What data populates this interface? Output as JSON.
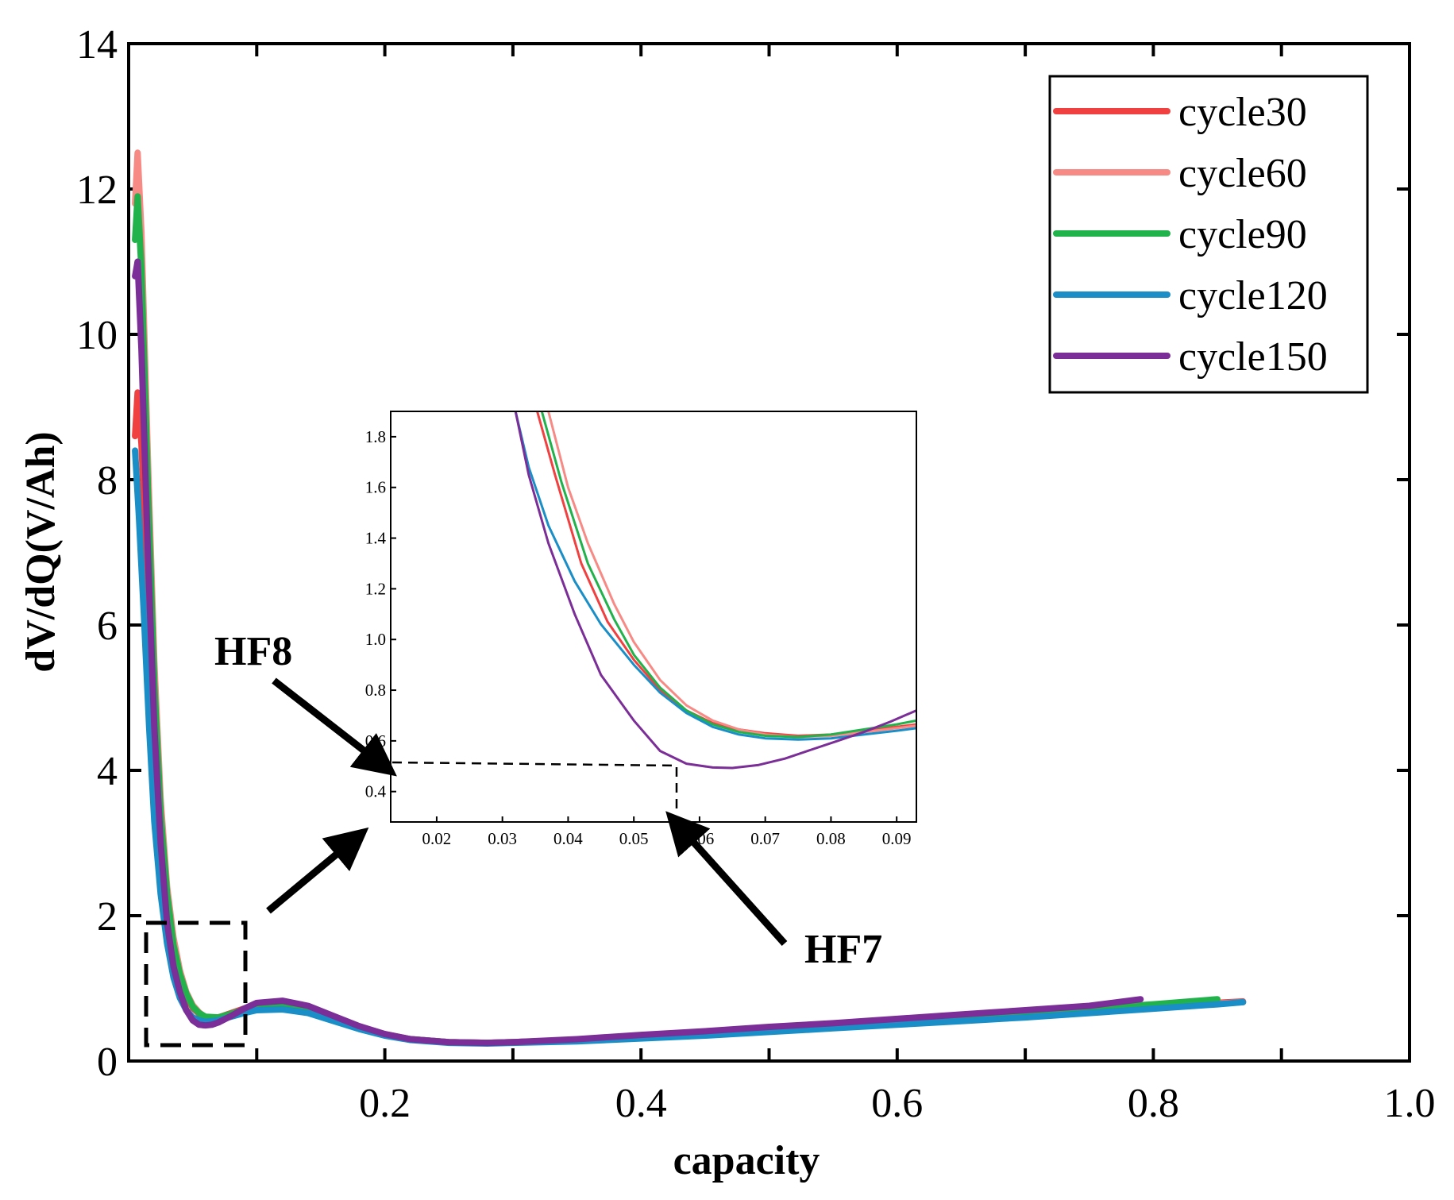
{
  "chart_data": [
    {
      "type": "line",
      "xlabel": "capacity",
      "ylabel": "dV/dQ(V/Ah)",
      "xlim": [
        0,
        1.0
      ],
      "ylim": [
        0,
        14
      ],
      "x_ticks": [
        "0.2",
        "0.4",
        "0.6",
        "0.8",
        "1.0"
      ],
      "y_ticks": [
        "0",
        "2",
        "4",
        "6",
        "8",
        "10",
        "12",
        "14"
      ],
      "legend_position": "top-right",
      "grid": false,
      "series": [
        {
          "name": "cycle30",
          "color": "#f04040",
          "x": [
            0.005,
            0.007,
            0.01,
            0.015,
            0.02,
            0.025,
            0.03,
            0.035,
            0.04,
            0.045,
            0.05,
            0.055,
            0.06,
            0.07,
            0.08,
            0.09,
            0.1,
            0.12,
            0.14,
            0.16,
            0.18,
            0.2,
            0.22,
            0.25,
            0.28,
            0.3,
            0.35,
            0.4,
            0.45,
            0.5,
            0.55,
            0.6,
            0.65,
            0.7,
            0.75,
            0.8,
            0.85,
            0.87
          ],
          "y": [
            8.6,
            9.2,
            8.5,
            6.5,
            4.6,
            3.2,
            2.2,
            1.55,
            1.15,
            0.9,
            0.73,
            0.65,
            0.6,
            0.6,
            0.66,
            0.72,
            0.76,
            0.78,
            0.72,
            0.6,
            0.47,
            0.37,
            0.3,
            0.26,
            0.25,
            0.26,
            0.29,
            0.34,
            0.38,
            0.43,
            0.48,
            0.53,
            0.58,
            0.63,
            0.69,
            0.75,
            0.8,
            0.82
          ]
        },
        {
          "name": "cycle60",
          "color": "#f88a85",
          "x": [
            0.005,
            0.007,
            0.01,
            0.015,
            0.02,
            0.025,
            0.03,
            0.035,
            0.04,
            0.045,
            0.05,
            0.055,
            0.06,
            0.07,
            0.08,
            0.09,
            0.1,
            0.12,
            0.14,
            0.16,
            0.18,
            0.2,
            0.22,
            0.25,
            0.28,
            0.3,
            0.35,
            0.4,
            0.45,
            0.5,
            0.55,
            0.6,
            0.65,
            0.7,
            0.75,
            0.8,
            0.85,
            0.87
          ],
          "y": [
            11.8,
            12.5,
            11.4,
            8.3,
            5.5,
            3.6,
            2.4,
            1.7,
            1.25,
            0.95,
            0.77,
            0.67,
            0.6,
            0.59,
            0.64,
            0.7,
            0.75,
            0.77,
            0.71,
            0.59,
            0.46,
            0.36,
            0.3,
            0.26,
            0.25,
            0.26,
            0.29,
            0.33,
            0.38,
            0.43,
            0.48,
            0.53,
            0.58,
            0.63,
            0.69,
            0.74,
            0.79,
            0.81
          ]
        },
        {
          "name": "cycle90",
          "color": "#22b24c",
          "x": [
            0.005,
            0.007,
            0.01,
            0.015,
            0.02,
            0.025,
            0.03,
            0.035,
            0.04,
            0.045,
            0.05,
            0.055,
            0.06,
            0.07,
            0.08,
            0.09,
            0.1,
            0.12,
            0.14,
            0.16,
            0.18,
            0.2,
            0.22,
            0.25,
            0.28,
            0.3,
            0.35,
            0.4,
            0.45,
            0.5,
            0.55,
            0.6,
            0.65,
            0.7,
            0.75,
            0.8,
            0.85
          ],
          "y": [
            11.3,
            11.9,
            10.9,
            7.9,
            5.2,
            3.4,
            2.3,
            1.6,
            1.2,
            0.93,
            0.75,
            0.66,
            0.61,
            0.6,
            0.65,
            0.71,
            0.75,
            0.77,
            0.71,
            0.59,
            0.46,
            0.36,
            0.3,
            0.26,
            0.25,
            0.26,
            0.29,
            0.34,
            0.39,
            0.44,
            0.5,
            0.55,
            0.6,
            0.66,
            0.72,
            0.78,
            0.85
          ]
        },
        {
          "name": "cycle120",
          "color": "#1a8ec6",
          "x": [
            0.005,
            0.008,
            0.012,
            0.016,
            0.02,
            0.025,
            0.03,
            0.035,
            0.04,
            0.045,
            0.05,
            0.055,
            0.06,
            0.07,
            0.08,
            0.09,
            0.1,
            0.12,
            0.14,
            0.16,
            0.18,
            0.2,
            0.22,
            0.25,
            0.28,
            0.3,
            0.35,
            0.4,
            0.45,
            0.5,
            0.55,
            0.6,
            0.65,
            0.7,
            0.75,
            0.8,
            0.85,
            0.87
          ],
          "y": [
            8.4,
            7.5,
            6.1,
            4.6,
            3.3,
            2.3,
            1.62,
            1.15,
            0.87,
            0.7,
            0.6,
            0.56,
            0.54,
            0.56,
            0.61,
            0.66,
            0.7,
            0.71,
            0.66,
            0.55,
            0.44,
            0.35,
            0.29,
            0.25,
            0.24,
            0.25,
            0.27,
            0.31,
            0.35,
            0.4,
            0.45,
            0.5,
            0.55,
            0.6,
            0.66,
            0.72,
            0.78,
            0.81
          ]
        },
        {
          "name": "cycle150",
          "color": "#7b2e97",
          "x": [
            0.005,
            0.007,
            0.01,
            0.015,
            0.02,
            0.025,
            0.03,
            0.035,
            0.04,
            0.045,
            0.05,
            0.055,
            0.06,
            0.065,
            0.07,
            0.08,
            0.09,
            0.1,
            0.12,
            0.14,
            0.16,
            0.18,
            0.2,
            0.22,
            0.25,
            0.28,
            0.3,
            0.35,
            0.4,
            0.45,
            0.5,
            0.55,
            0.6,
            0.65,
            0.7,
            0.75,
            0.79
          ],
          "y": [
            10.8,
            11.0,
            9.8,
            7.0,
            4.6,
            3.0,
            1.9,
            1.3,
            0.95,
            0.7,
            0.56,
            0.5,
            0.49,
            0.5,
            0.53,
            0.62,
            0.72,
            0.8,
            0.83,
            0.76,
            0.62,
            0.48,
            0.37,
            0.3,
            0.26,
            0.25,
            0.26,
            0.3,
            0.36,
            0.41,
            0.47,
            0.52,
            0.58,
            0.64,
            0.7,
            0.76,
            0.85
          ]
        }
      ],
      "annotations": [
        "HF8",
        "HF7"
      ]
    },
    {
      "type": "line",
      "role": "inset",
      "xlim": [
        0.013,
        0.093
      ],
      "ylim": [
        0.28,
        1.9
      ],
      "x_ticks": [
        "0.02",
        "0.03",
        "0.04",
        "0.05",
        "0.06",
        "0.07",
        "0.08",
        "0.09"
      ],
      "y_ticks": [
        "0.4",
        "0.6",
        "0.8",
        "1.0",
        "1.2",
        "1.4",
        "1.6",
        "1.8"
      ],
      "series": [
        {
          "name": "cycle30",
          "color": "#f04040",
          "x": [
            0.0353,
            0.038,
            0.042,
            0.046,
            0.05,
            0.054,
            0.058,
            0.062,
            0.066,
            0.07,
            0.075,
            0.08,
            0.085,
            0.09,
            0.093
          ],
          "y": [
            1.9,
            1.65,
            1.3,
            1.07,
            0.92,
            0.8,
            0.72,
            0.67,
            0.645,
            0.63,
            0.62,
            0.625,
            0.64,
            0.655,
            0.665
          ]
        },
        {
          "name": "cycle60",
          "color": "#f88a85",
          "x": [
            0.037,
            0.04,
            0.043,
            0.047,
            0.05,
            0.054,
            0.058,
            0.062,
            0.066,
            0.07,
            0.075,
            0.08,
            0.085,
            0.09,
            0.093
          ],
          "y": [
            1.9,
            1.6,
            1.38,
            1.14,
            0.99,
            0.84,
            0.74,
            0.68,
            0.645,
            0.625,
            0.615,
            0.62,
            0.635,
            0.65,
            0.66
          ]
        },
        {
          "name": "cycle90",
          "color": "#22b24c",
          "x": [
            0.036,
            0.039,
            0.043,
            0.047,
            0.05,
            0.054,
            0.058,
            0.062,
            0.066,
            0.07,
            0.075,
            0.08,
            0.085,
            0.09,
            0.093
          ],
          "y": [
            1.9,
            1.62,
            1.3,
            1.08,
            0.94,
            0.81,
            0.72,
            0.665,
            0.635,
            0.62,
            0.615,
            0.625,
            0.645,
            0.665,
            0.68
          ]
        },
        {
          "name": "cycle120",
          "color": "#1a8ec6",
          "x": [
            0.032,
            0.034,
            0.037,
            0.041,
            0.045,
            0.05,
            0.054,
            0.058,
            0.062,
            0.066,
            0.07,
            0.075,
            0.08,
            0.085,
            0.09,
            0.093
          ],
          "y": [
            1.9,
            1.68,
            1.45,
            1.23,
            1.06,
            0.9,
            0.79,
            0.71,
            0.655,
            0.625,
            0.61,
            0.605,
            0.61,
            0.625,
            0.64,
            0.65
          ]
        },
        {
          "name": "cycle150",
          "color": "#7b2e97",
          "x": [
            0.032,
            0.034,
            0.037,
            0.041,
            0.045,
            0.05,
            0.054,
            0.058,
            0.062,
            0.065,
            0.069,
            0.073,
            0.077,
            0.081,
            0.085,
            0.089,
            0.093
          ],
          "y": [
            1.9,
            1.65,
            1.38,
            1.1,
            0.86,
            0.68,
            0.56,
            0.51,
            0.495,
            0.493,
            0.505,
            0.53,
            0.565,
            0.6,
            0.635,
            0.675,
            0.72
          ]
        }
      ]
    }
  ]
}
